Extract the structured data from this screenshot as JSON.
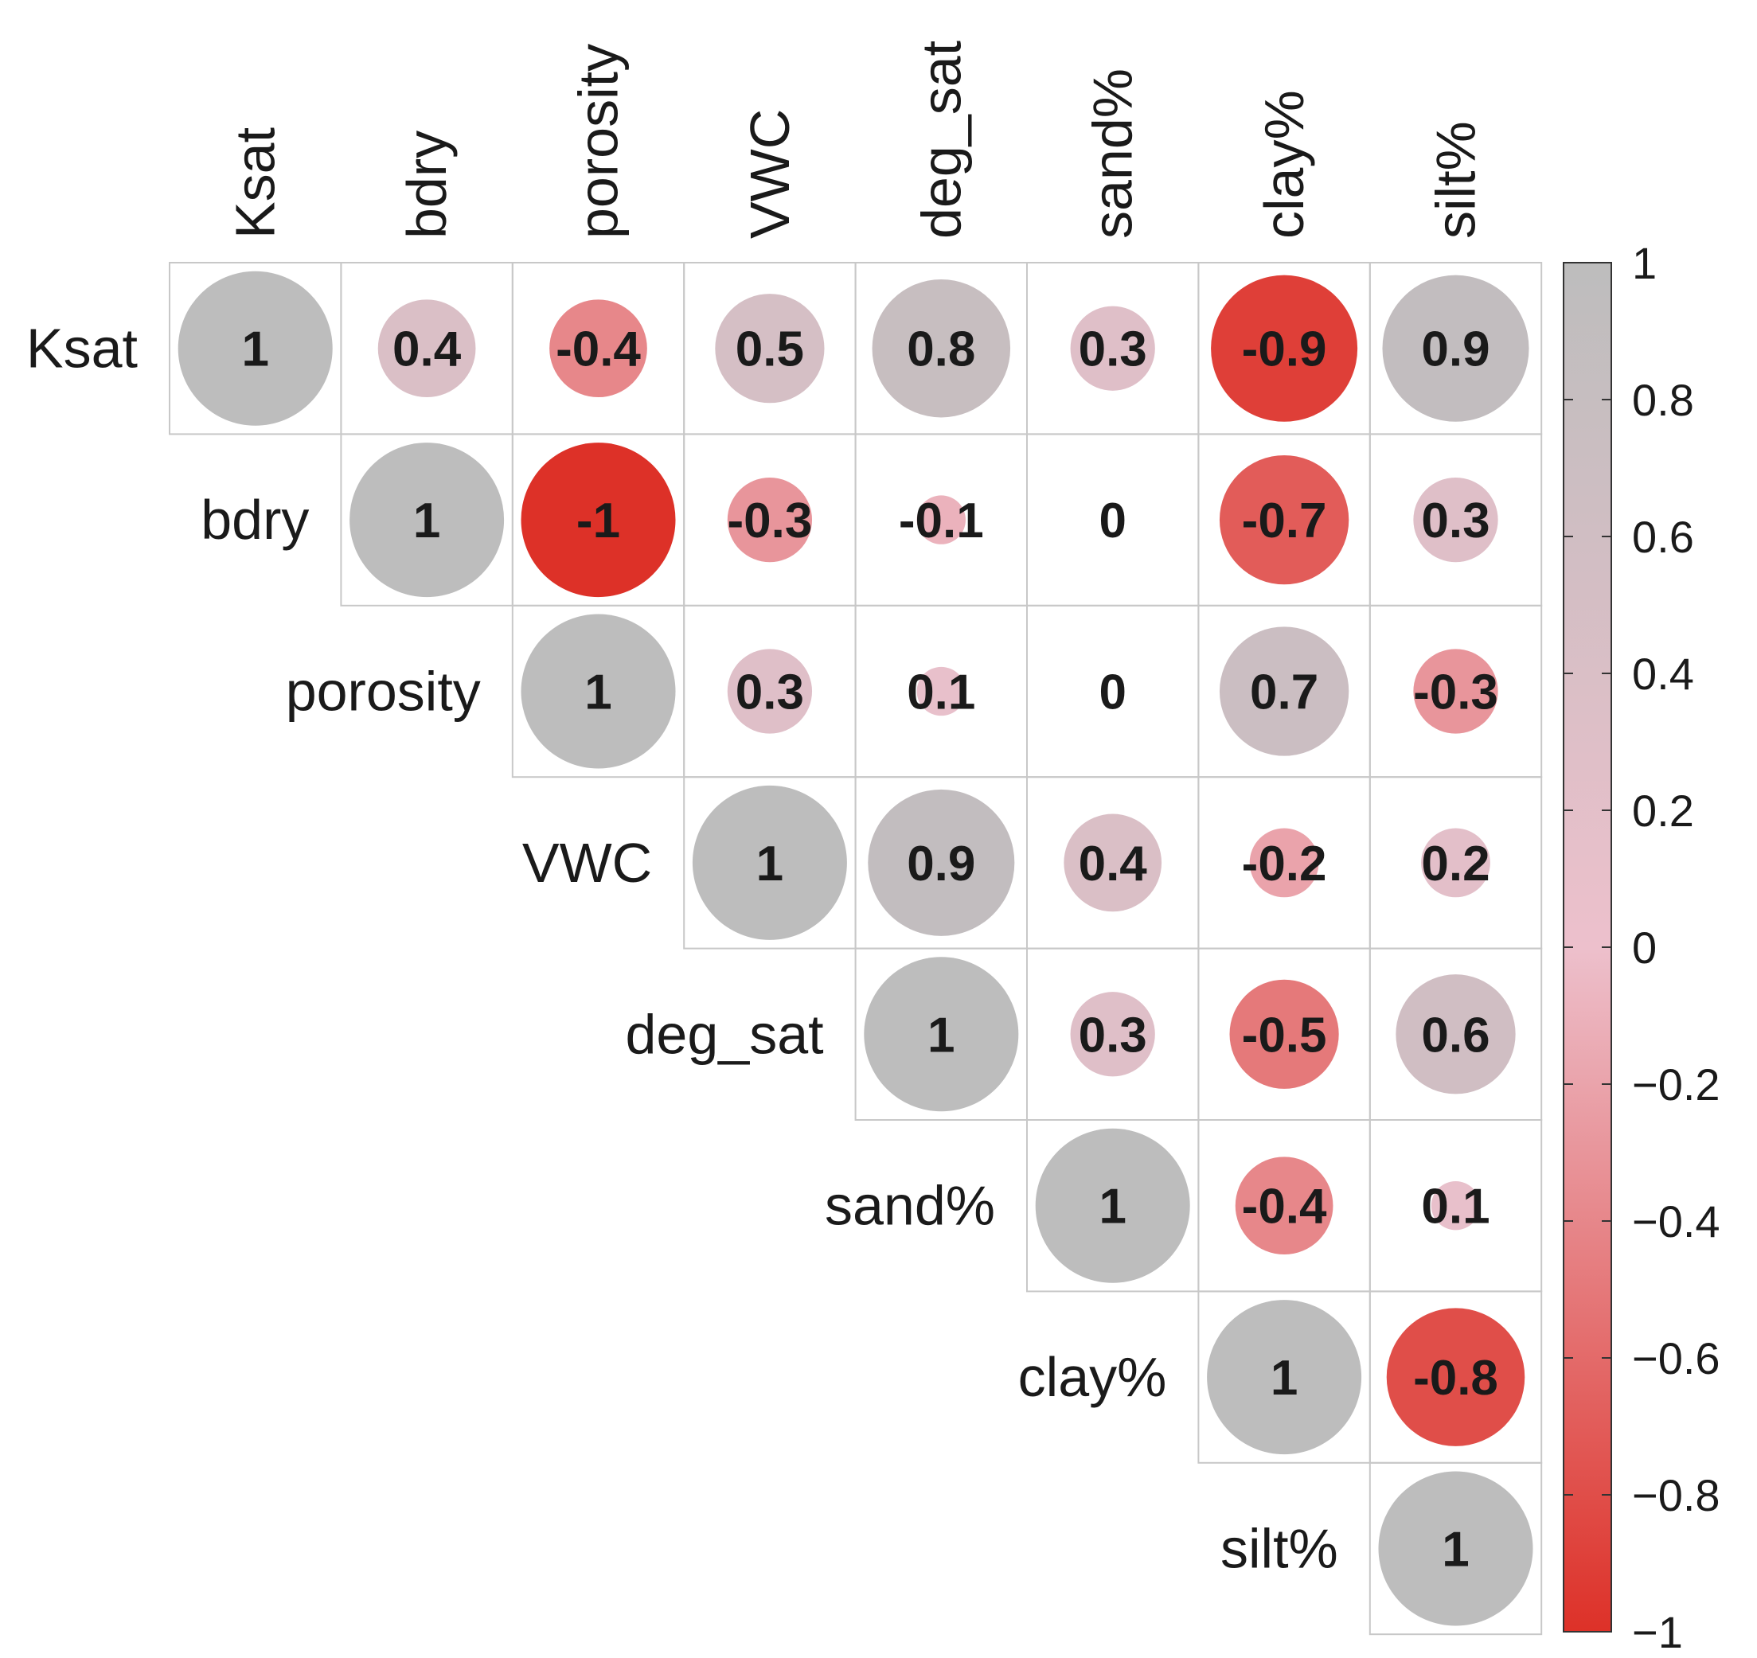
{
  "chart_data": {
    "type": "heatmap",
    "variables": [
      "Ksat",
      "bdry",
      "porosity",
      "VWC",
      "deg_sat",
      "sand%",
      "clay%",
      "silt%"
    ],
    "matrix": [
      [
        1,
        0.4,
        -0.4,
        0.5,
        0.8,
        0.3,
        -0.9,
        0.9
      ],
      [
        null,
        1,
        -1,
        -0.3,
        -0.1,
        0,
        -0.7,
        0.3
      ],
      [
        null,
        null,
        1,
        0.3,
        0.1,
        0,
        0.7,
        -0.3
      ],
      [
        null,
        null,
        null,
        1,
        0.9,
        0.4,
        -0.2,
        0.2
      ],
      [
        null,
        null,
        null,
        null,
        1,
        0.3,
        -0.5,
        0.6
      ],
      [
        null,
        null,
        null,
        null,
        null,
        1,
        -0.4,
        0.1
      ],
      [
        null,
        null,
        null,
        null,
        null,
        null,
        1,
        -0.8
      ],
      [
        null,
        null,
        null,
        null,
        null,
        null,
        null,
        1
      ]
    ],
    "cell_labels": [
      [
        "1",
        "0.4",
        "-0.4",
        "0.5",
        "0.8",
        "0.3",
        "-0.9",
        "0.9"
      ],
      [
        "",
        "1",
        "-1",
        "-0.3",
        "-0.1",
        "0",
        "-0.7",
        "0.3"
      ],
      [
        "",
        "",
        "1",
        "0.3",
        "0.1",
        "0",
        "0.7",
        "-0.3"
      ],
      [
        "",
        "",
        "",
        "1",
        "0.9",
        "0.4",
        "-0.2",
        "0.2"
      ],
      [
        "",
        "",
        "",
        "",
        "1",
        "0.3",
        "-0.5",
        "0.6"
      ],
      [
        "",
        "",
        "",
        "",
        "",
        "1",
        "-0.4",
        "0.1"
      ],
      [
        "",
        "",
        "",
        "",
        "",
        "",
        "1",
        "-0.8"
      ],
      [
        "",
        "",
        "",
        "",
        "",
        "",
        "",
        "1"
      ]
    ],
    "layout": "upper-triangle",
    "marker": "circle",
    "colorbar": {
      "range": [
        -1,
        1
      ],
      "ticks": [
        1,
        0.8,
        0.6,
        0.4,
        0.2,
        0,
        -0.2,
        -0.4,
        -0.6,
        -0.8,
        -1
      ],
      "tick_labels": [
        "1",
        "0.8",
        "0.6",
        "0.4",
        "0.2",
        "0",
        "−0.2",
        "−0.4",
        "−0.6",
        "−0.8",
        "−1"
      ],
      "placement": "right"
    },
    "colors": {
      "negative": "#dd3128",
      "zero": "#edc0cc",
      "positive": "#bdbdbd",
      "grid": "#c8c8c8"
    },
    "title": "",
    "xlabel": "",
    "ylabel": ""
  }
}
